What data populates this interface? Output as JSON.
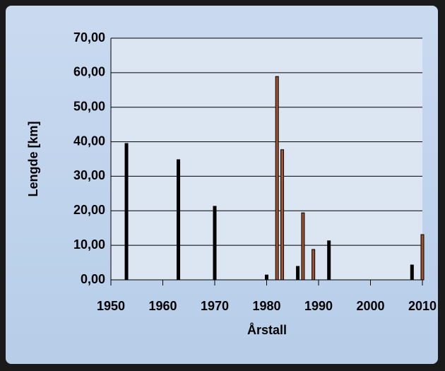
{
  "chart_data": {
    "type": "bar",
    "x_label": "Årstall",
    "y_label": "Lengde [km]",
    "x": [
      1953,
      1963,
      1970,
      1980,
      1982,
      1983,
      1986,
      1987,
      1989,
      1992,
      2008,
      2010
    ],
    "values": [
      39.5,
      34.8,
      21.3,
      1.4,
      58.9,
      37.7,
      3.9,
      19.4,
      8.8,
      11.3,
      4.3,
      13.1
    ],
    "colors": [
      "#000000",
      "#000000",
      "#000000",
      "#000000",
      "#a0522d",
      "#a0522d",
      "#000000",
      "#a0522d",
      "#a0522d",
      "#000000",
      "#000000",
      "#a0522d"
    ],
    "xlim": [
      1950,
      2010
    ],
    "xticks": [
      1950,
      1960,
      1970,
      1980,
      1990,
      2000,
      2010
    ],
    "ylim": [
      0,
      70
    ],
    "yticks": [
      {
        "value": 0,
        "label": "0,00"
      },
      {
        "value": 10,
        "label": "10,00"
      },
      {
        "value": 20,
        "label": "20,00"
      },
      {
        "value": 30,
        "label": "30,00"
      },
      {
        "value": 40,
        "label": "40,00"
      },
      {
        "value": 50,
        "label": "50,00"
      },
      {
        "value": 60,
        "label": "60,00"
      },
      {
        "value": 70,
        "label": "70,00"
      }
    ],
    "grid": true
  }
}
